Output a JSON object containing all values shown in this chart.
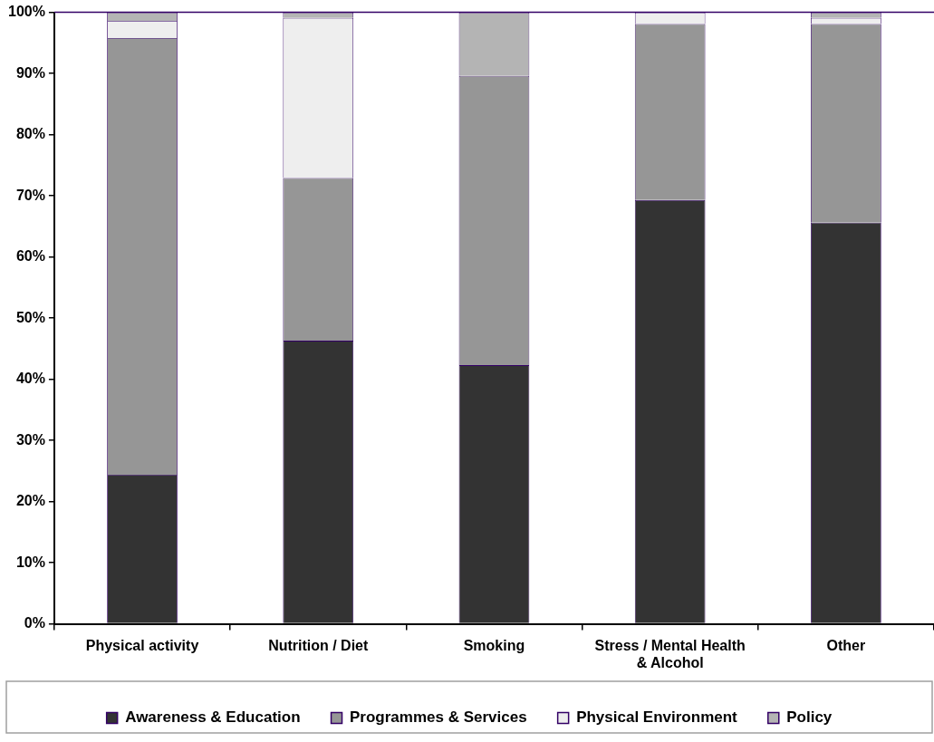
{
  "chart_data": {
    "type": "bar",
    "stacked": true,
    "categories": [
      "Physical activity",
      "Nutrition / Diet",
      "Smoking",
      "Stress / Mental Health & Alcohol",
      "Other"
    ],
    "series": [
      {
        "name": "Awareness & Education",
        "color": "#333333",
        "values": [
          24.4,
          46.3,
          42.3,
          69.3,
          65.6
        ]
      },
      {
        "name": "Programmes & Services",
        "color": "#969696",
        "values": [
          71.4,
          26.6,
          47.3,
          28.8,
          32.5
        ]
      },
      {
        "name": "Physical Environment",
        "color": "#eeeeee",
        "values": [
          2.8,
          26.2,
          0,
          1.9,
          1.0
        ]
      },
      {
        "name": "Policy",
        "color": "#b4b4b4",
        "values": [
          1.4,
          0.9,
          10.4,
          0,
          0.9
        ]
      }
    ],
    "ylim": [
      0,
      100
    ],
    "yticks": [
      {
        "value": 0,
        "label": "0%"
      },
      {
        "value": 10,
        "label": "10%"
      },
      {
        "value": 20,
        "label": "20%"
      },
      {
        "value": 30,
        "label": "30%"
      },
      {
        "value": 40,
        "label": "40%"
      },
      {
        "value": 50,
        "label": "50%"
      },
      {
        "value": 60,
        "label": "60%"
      },
      {
        "value": 70,
        "label": "70%"
      },
      {
        "value": 80,
        "label": "80%"
      },
      {
        "value": 90,
        "label": "90%"
      },
      {
        "value": 100,
        "label": "100%"
      }
    ],
    "grid": false,
    "legend": "bottom"
  }
}
